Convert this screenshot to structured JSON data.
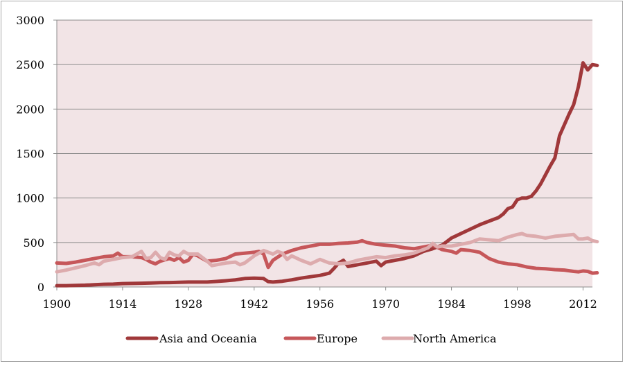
{
  "chart_data": {
    "type": "line",
    "title": "",
    "xlabel": "",
    "ylabel": "",
    "xlim": [
      1900,
      2014
    ],
    "ylim": [
      0,
      3000
    ],
    "x_ticks": [
      1900,
      1914,
      1928,
      1942,
      1956,
      1970,
      1984,
      1998,
      2012
    ],
    "y_ticks": [
      0,
      500,
      1000,
      1500,
      2000,
      2500,
      3000
    ],
    "x_tick_labels": [
      "1900",
      "1914",
      "1928",
      "1942",
      "1956",
      "1970",
      "1984",
      "1998",
      "2012"
    ],
    "y_tick_labels": [
      "0",
      "500",
      "1000",
      "1500",
      "2000",
      "2500",
      "3000"
    ],
    "grid": "horizontal",
    "legend_position": "bottom",
    "plot_background": "#f2e4e6",
    "series": [
      {
        "name": "Asia and Oceania",
        "color": "#a0383a",
        "points": [
          [
            1900,
            15
          ],
          [
            1902,
            15
          ],
          [
            1904,
            18
          ],
          [
            1906,
            20
          ],
          [
            1908,
            25
          ],
          [
            1910,
            30
          ],
          [
            1912,
            32
          ],
          [
            1914,
            38
          ],
          [
            1916,
            40
          ],
          [
            1918,
            42
          ],
          [
            1920,
            45
          ],
          [
            1922,
            48
          ],
          [
            1924,
            50
          ],
          [
            1926,
            52
          ],
          [
            1928,
            55
          ],
          [
            1930,
            55
          ],
          [
            1932,
            55
          ],
          [
            1934,
            62
          ],
          [
            1936,
            70
          ],
          [
            1938,
            80
          ],
          [
            1940,
            95
          ],
          [
            1942,
            100
          ],
          [
            1944,
            95
          ],
          [
            1945,
            60
          ],
          [
            1946,
            55
          ],
          [
            1948,
            65
          ],
          [
            1950,
            80
          ],
          [
            1952,
            100
          ],
          [
            1954,
            115
          ],
          [
            1956,
            130
          ],
          [
            1958,
            155
          ],
          [
            1959,
            210
          ],
          [
            1960,
            270
          ],
          [
            1961,
            300
          ],
          [
            1962,
            230
          ],
          [
            1964,
            250
          ],
          [
            1966,
            270
          ],
          [
            1968,
            290
          ],
          [
            1969,
            240
          ],
          [
            1970,
            280
          ],
          [
            1972,
            300
          ],
          [
            1974,
            320
          ],
          [
            1976,
            350
          ],
          [
            1978,
            400
          ],
          [
            1980,
            430
          ],
          [
            1982,
            470
          ],
          [
            1984,
            550
          ],
          [
            1986,
            600
          ],
          [
            1988,
            650
          ],
          [
            1990,
            700
          ],
          [
            1992,
            740
          ],
          [
            1994,
            780
          ],
          [
            1995,
            820
          ],
          [
            1996,
            880
          ],
          [
            1997,
            900
          ],
          [
            1998,
            980
          ],
          [
            1999,
            1000
          ],
          [
            2000,
            1000
          ],
          [
            2001,
            1020
          ],
          [
            2002,
            1080
          ],
          [
            2003,
            1160
          ],
          [
            2004,
            1260
          ],
          [
            2005,
            1360
          ],
          [
            2006,
            1450
          ],
          [
            2007,
            1700
          ],
          [
            2008,
            1820
          ],
          [
            2009,
            1940
          ],
          [
            2010,
            2050
          ],
          [
            2011,
            2250
          ],
          [
            2012,
            2520
          ],
          [
            2013,
            2440
          ],
          [
            2014,
            2500
          ],
          [
            2015,
            2490
          ]
        ]
      },
      {
        "name": "Europe",
        "color": "#c6575a",
        "points": [
          [
            1900,
            270
          ],
          [
            1902,
            265
          ],
          [
            1904,
            280
          ],
          [
            1906,
            300
          ],
          [
            1908,
            320
          ],
          [
            1910,
            340
          ],
          [
            1912,
            350
          ],
          [
            1913,
            380
          ],
          [
            1914,
            340
          ],
          [
            1916,
            340
          ],
          [
            1918,
            330
          ],
          [
            1919,
            310
          ],
          [
            1920,
            280
          ],
          [
            1921,
            260
          ],
          [
            1922,
            290
          ],
          [
            1924,
            320
          ],
          [
            1925,
            300
          ],
          [
            1926,
            330
          ],
          [
            1927,
            280
          ],
          [
            1928,
            300
          ],
          [
            1929,
            370
          ],
          [
            1930,
            350
          ],
          [
            1932,
            290
          ],
          [
            1934,
            300
          ],
          [
            1936,
            320
          ],
          [
            1938,
            370
          ],
          [
            1940,
            380
          ],
          [
            1942,
            390
          ],
          [
            1943,
            400
          ],
          [
            1944,
            370
          ],
          [
            1945,
            220
          ],
          [
            1946,
            300
          ],
          [
            1948,
            370
          ],
          [
            1950,
            410
          ],
          [
            1952,
            440
          ],
          [
            1954,
            460
          ],
          [
            1956,
            480
          ],
          [
            1958,
            480
          ],
          [
            1960,
            490
          ],
          [
            1962,
            495
          ],
          [
            1964,
            505
          ],
          [
            1965,
            520
          ],
          [
            1966,
            500
          ],
          [
            1968,
            480
          ],
          [
            1970,
            470
          ],
          [
            1972,
            460
          ],
          [
            1974,
            440
          ],
          [
            1976,
            430
          ],
          [
            1978,
            450
          ],
          [
            1980,
            470
          ],
          [
            1982,
            420
          ],
          [
            1984,
            400
          ],
          [
            1985,
            380
          ],
          [
            1986,
            420
          ],
          [
            1988,
            410
          ],
          [
            1990,
            390
          ],
          [
            1992,
            320
          ],
          [
            1994,
            280
          ],
          [
            1996,
            260
          ],
          [
            1998,
            250
          ],
          [
            2000,
            225
          ],
          [
            2002,
            210
          ],
          [
            2004,
            205
          ],
          [
            2006,
            195
          ],
          [
            2008,
            190
          ],
          [
            2010,
            175
          ],
          [
            2011,
            170
          ],
          [
            2012,
            180
          ],
          [
            2013,
            175
          ],
          [
            2014,
            155
          ],
          [
            2015,
            160
          ]
        ]
      },
      {
        "name": "North America",
        "color": "#ddabad",
        "points": [
          [
            1900,
            170
          ],
          [
            1902,
            190
          ],
          [
            1904,
            215
          ],
          [
            1906,
            240
          ],
          [
            1908,
            270
          ],
          [
            1909,
            250
          ],
          [
            1910,
            290
          ],
          [
            1912,
            310
          ],
          [
            1914,
            330
          ],
          [
            1916,
            340
          ],
          [
            1918,
            400
          ],
          [
            1919,
            320
          ],
          [
            1920,
            330
          ],
          [
            1921,
            390
          ],
          [
            1922,
            330
          ],
          [
            1923,
            310
          ],
          [
            1924,
            390
          ],
          [
            1925,
            360
          ],
          [
            1926,
            350
          ],
          [
            1927,
            400
          ],
          [
            1928,
            370
          ],
          [
            1930,
            370
          ],
          [
            1932,
            290
          ],
          [
            1933,
            240
          ],
          [
            1934,
            250
          ],
          [
            1936,
            270
          ],
          [
            1938,
            280
          ],
          [
            1939,
            250
          ],
          [
            1940,
            270
          ],
          [
            1942,
            350
          ],
          [
            1944,
            410
          ],
          [
            1946,
            370
          ],
          [
            1947,
            400
          ],
          [
            1948,
            380
          ],
          [
            1949,
            310
          ],
          [
            1950,
            350
          ],
          [
            1952,
            300
          ],
          [
            1954,
            260
          ],
          [
            1956,
            310
          ],
          [
            1957,
            290
          ],
          [
            1958,
            270
          ],
          [
            1960,
            260
          ],
          [
            1962,
            270
          ],
          [
            1964,
            300
          ],
          [
            1966,
            320
          ],
          [
            1968,
            340
          ],
          [
            1970,
            330
          ],
          [
            1972,
            350
          ],
          [
            1974,
            360
          ],
          [
            1976,
            380
          ],
          [
            1978,
            420
          ],
          [
            1979,
            440
          ],
          [
            1980,
            490
          ],
          [
            1981,
            450
          ],
          [
            1982,
            460
          ],
          [
            1984,
            460
          ],
          [
            1986,
            480
          ],
          [
            1988,
            500
          ],
          [
            1990,
            540
          ],
          [
            1992,
            530
          ],
          [
            1994,
            520
          ],
          [
            1996,
            560
          ],
          [
            1998,
            590
          ],
          [
            1999,
            600
          ],
          [
            2000,
            580
          ],
          [
            2002,
            570
          ],
          [
            2004,
            550
          ],
          [
            2006,
            570
          ],
          [
            2008,
            580
          ],
          [
            2010,
            590
          ],
          [
            2011,
            540
          ],
          [
            2012,
            540
          ],
          [
            2013,
            550
          ],
          [
            2014,
            520
          ],
          [
            2015,
            510
          ]
        ]
      }
    ]
  }
}
